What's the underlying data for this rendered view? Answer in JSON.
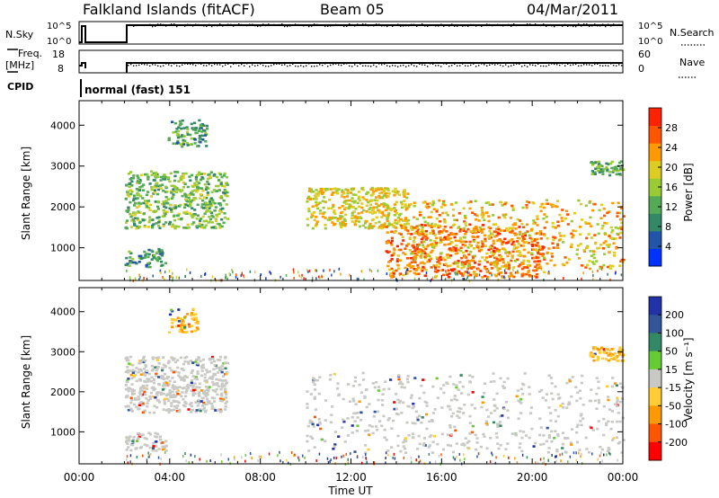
{
  "header": {
    "station": "Falkland Islands (fitACF)",
    "beam": "Beam 05",
    "date": "04/Mar/2011"
  },
  "status_panels": {
    "nsky": {
      "label": "N.Sky",
      "right_label": "N.Search",
      "left_ticks": [
        "10^5",
        "10^0"
      ],
      "right_ticks": [
        "10^5",
        "10^0"
      ]
    },
    "freq": {
      "label_line1": "Freq.",
      "label_line2": "[MHz]",
      "right_label": "Nave",
      "left_ticks": [
        "18",
        "8"
      ],
      "right_ticks": [
        "60",
        "0"
      ]
    },
    "cpid": {
      "label": "CPID",
      "value": "normal (fast) 151"
    }
  },
  "chart_data": [
    {
      "type": "heatmap",
      "panel": "power",
      "ylabel": "Slant Range [km]",
      "xlabel": "Time UT",
      "x_ticks": [
        "00:00",
        "04:00",
        "08:00",
        "12:00",
        "16:00",
        "20:00",
        "00:00"
      ],
      "y_ticks": [
        "1000",
        "2000",
        "3000",
        "4000"
      ],
      "xlim_hours": [
        0,
        24
      ],
      "ylim_km": [
        200,
        4600
      ],
      "data_gap_hours": [
        0.3,
        2.0
      ],
      "colorbar": {
        "label": "Power [dB]",
        "ticks": [
          "4",
          "8",
          "12",
          "16",
          "20",
          "24",
          "28"
        ],
        "range": [
          0,
          32
        ],
        "colors": [
          "#0033ff",
          "#2255aa",
          "#338866",
          "#55aa55",
          "#99cc33",
          "#ddcc22",
          "#ff9900",
          "#ff5500",
          "#ff2200"
        ]
      },
      "echo_regions": [
        {
          "t0": 3.9,
          "t1": 5.6,
          "r0": 3500,
          "r1": 4150,
          "level": 10
        },
        {
          "t0": 2.0,
          "t1": 6.5,
          "r0": 1500,
          "r1": 2900,
          "level": 14
        },
        {
          "t0": 2.0,
          "t1": 3.8,
          "r0": 550,
          "r1": 1000,
          "level": 10
        },
        {
          "t0": 10.0,
          "t1": 14.5,
          "r0": 1500,
          "r1": 2500,
          "level": 20
        },
        {
          "t0": 13.5,
          "t1": 20.5,
          "r0": 300,
          "r1": 1600,
          "level": 26
        },
        {
          "t0": 14.5,
          "t1": 24.0,
          "r0": 500,
          "r1": 2200,
          "level": 22
        },
        {
          "t0": 22.5,
          "t1": 24.0,
          "r0": 2800,
          "r1": 3150,
          "level": 12
        }
      ]
    },
    {
      "type": "heatmap",
      "panel": "velocity",
      "ylabel": "Slant Range [km]",
      "xlabel": "Time UT",
      "x_ticks": [
        "00:00",
        "04:00",
        "08:00",
        "12:00",
        "16:00",
        "20:00",
        "00:00"
      ],
      "y_ticks": [
        "1000",
        "2000",
        "3000",
        "4000"
      ],
      "xlim_hours": [
        0,
        24
      ],
      "ylim_km": [
        200,
        4600
      ],
      "colorbar": {
        "label": "Velocity [m s⁻¹]",
        "ticks": [
          "200",
          "100",
          "50",
          "15",
          "-15",
          "-50",
          "-100",
          "-200"
        ],
        "colors": [
          "#2233aa",
          "#335599",
          "#338866",
          "#66cc33",
          "#c8c8c4",
          "#ffcc33",
          "#ff9900",
          "#ff5500",
          "#ff0000"
        ]
      },
      "ground_scatter_color": "#c8c8c4",
      "echo_regions": [
        {
          "t0": 3.9,
          "t1": 5.2,
          "r0": 3500,
          "r1": 4100,
          "v": -50
        },
        {
          "t0": 2.0,
          "t1": 6.5,
          "r0": 1500,
          "r1": 2900,
          "v": 0
        },
        {
          "t0": 2.0,
          "t1": 3.8,
          "r0": 550,
          "r1": 1000,
          "v": 0
        },
        {
          "t0": 10.0,
          "t1": 24.0,
          "r0": 500,
          "r1": 2500,
          "v": 0
        },
        {
          "t0": 22.5,
          "t1": 24.0,
          "r0": 2800,
          "r1": 3150,
          "v": -50
        }
      ]
    }
  ]
}
